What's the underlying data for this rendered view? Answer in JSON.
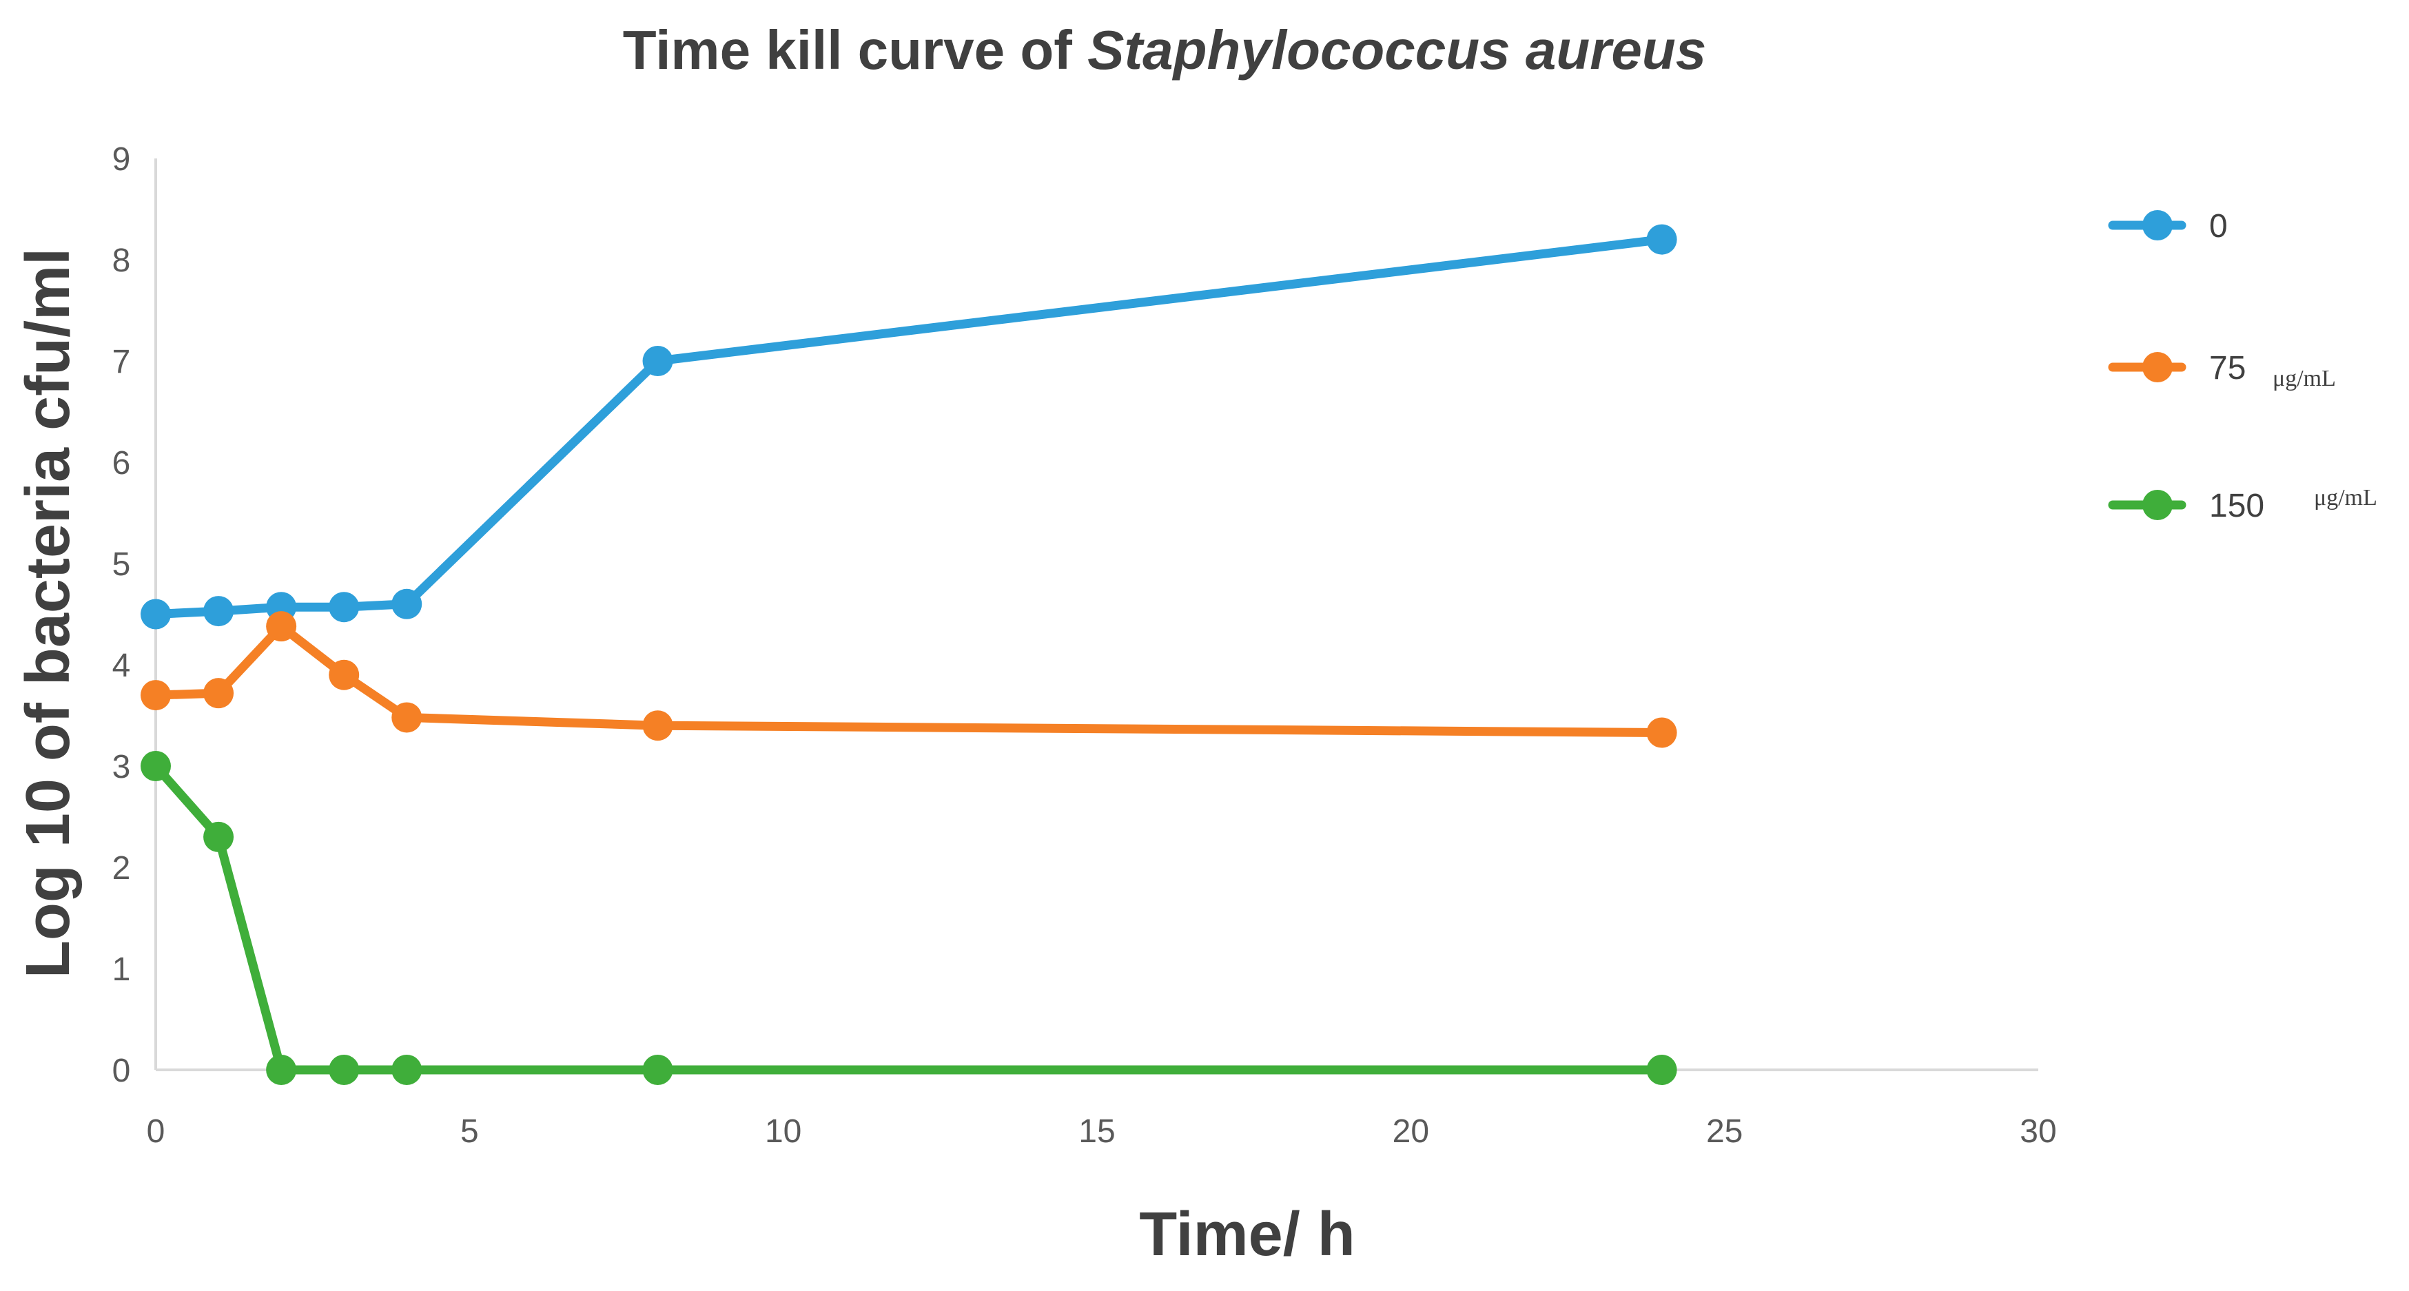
{
  "chart_data": {
    "type": "line",
    "title_prefix": "Time kill curve of ",
    "title_italic": "Staphylococcus aureus",
    "xlabel": "Time/ h",
    "ylabel": "Log 10 of bacteria cfu/ml",
    "xlim": [
      0,
      30
    ],
    "ylim": [
      0,
      9
    ],
    "xticks": [
      "0",
      "5",
      "10",
      "15",
      "20",
      "25",
      "30"
    ],
    "yticks": [
      "0",
      "1",
      "2",
      "3",
      "4",
      "5",
      "6",
      "7",
      "8",
      "9"
    ],
    "grid": false,
    "legend_position": "right",
    "x": [
      0,
      1,
      2,
      3,
      4,
      8,
      24
    ],
    "series": [
      {
        "name": "0",
        "unit": "",
        "color": "#2E9FDA",
        "values": [
          4.5,
          4.53,
          4.57,
          4.57,
          4.6,
          7.0,
          8.2
        ]
      },
      {
        "name": "75",
        "unit": "μg/mL",
        "color": "#F58025",
        "values": [
          3.7,
          3.72,
          4.38,
          3.9,
          3.48,
          3.4,
          3.33
        ]
      },
      {
        "name": "150",
        "unit": "μg/mL",
        "color": "#3FAE3A",
        "values": [
          3.0,
          2.3,
          0,
          0,
          0,
          0,
          0
        ]
      }
    ]
  }
}
